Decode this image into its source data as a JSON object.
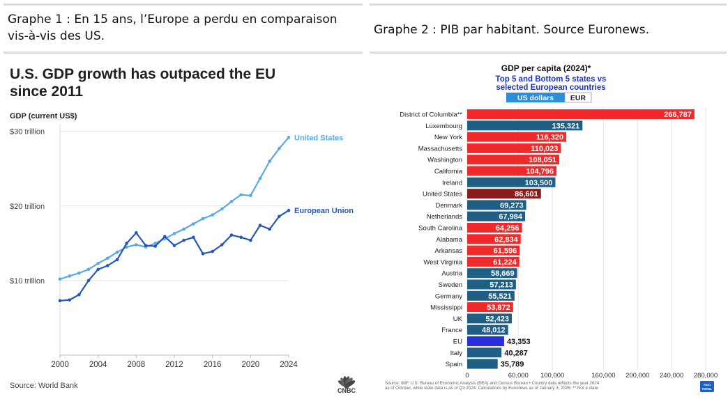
{
  "captions": {
    "graph1": "Graphe 1 : En 15 ans, l’Europe a perdu en comparaison vis-à-vis des US.",
    "graph2": "Graphe 2 : PIB par habitant. Source Euronews."
  },
  "colors": {
    "us_line": "#5aa9e6",
    "eu_line": "#2457b8",
    "state_bar": "#f02a2a",
    "country_bar": "#1f5f86",
    "us_bar": "#8b1c1c",
    "eu_bar": "#2b2de0",
    "title_blue": "#1a33c8"
  },
  "chart_data": [
    {
      "type": "line",
      "title": "U.S. GDP growth has outpaced the EU since 2011",
      "ylabel": "GDP (current US$)",
      "ytick_labels": [
        "$30 trillion",
        "$20 trillion",
        "$10 trillion"
      ],
      "ytick_values": [
        30,
        20,
        10
      ],
      "xtick_labels": [
        "2000",
        "2004",
        "2008",
        "2012",
        "2016",
        "2020",
        "2024"
      ],
      "ylim": [
        0,
        31
      ],
      "xlim": [
        2000,
        2024
      ],
      "x": [
        2000,
        2001,
        2002,
        2003,
        2004,
        2005,
        2006,
        2007,
        2008,
        2009,
        2010,
        2011,
        2012,
        2013,
        2014,
        2015,
        2016,
        2017,
        2018,
        2019,
        2020,
        2021,
        2022,
        2023,
        2024
      ],
      "series": [
        {
          "name": "United States",
          "values": [
            10.2,
            10.6,
            11.0,
            11.5,
            12.3,
            13.0,
            13.8,
            14.5,
            14.8,
            14.5,
            15.0,
            15.6,
            16.3,
            16.9,
            17.6,
            18.3,
            18.8,
            19.6,
            20.6,
            21.5,
            21.4,
            23.7,
            26.0,
            27.7,
            29.2
          ]
        },
        {
          "name": "European Union",
          "values": [
            7.3,
            7.4,
            8.1,
            10.0,
            11.5,
            12.0,
            12.8,
            15.0,
            16.4,
            14.7,
            14.6,
            15.9,
            14.7,
            15.4,
            15.8,
            13.6,
            13.9,
            14.8,
            16.1,
            15.8,
            15.4,
            17.4,
            16.9,
            18.6,
            19.4
          ]
        }
      ],
      "source": "Source: World Bank",
      "logo_text": "CNBC"
    },
    {
      "type": "bar",
      "orientation": "horizontal",
      "title": "GDP per capita (2024)*",
      "subtitle": "Top 5 and Bottom 5 states vs selected European countries",
      "toggle": {
        "active": "US dollars",
        "inactive": "EUR"
      },
      "xlim": [
        0,
        280000
      ],
      "xtick_values": [
        0,
        60000,
        100000,
        160000,
        200000,
        240000,
        280000
      ],
      "xtick_labels": [
        "0",
        "60,000",
        "100,000",
        "160,000",
        "200,000",
        "240,000",
        "280,000"
      ],
      "categories": [
        "District of Columbia**",
        "Luxembourg",
        "New York",
        "Massachusetts",
        "Washington",
        "California",
        "Ireland",
        "United States",
        "Denmark",
        "Netherlands",
        "South Carolina",
        "Alabama",
        "Arkansas",
        "West Virginia",
        "Austria",
        "Sweden",
        "Germany",
        "Mississippi",
        "UK",
        "France",
        "EU",
        "Italy",
        "Spain"
      ],
      "values": [
        266787,
        135321,
        116320,
        110023,
        108051,
        104796,
        103500,
        86601,
        69273,
        67984,
        64256,
        62834,
        61596,
        61224,
        58669,
        57213,
        55521,
        53872,
        52423,
        48012,
        43353,
        40287,
        35789
      ],
      "value_labels": [
        "266,787",
        "135,321",
        "116,320",
        "110,023",
        "108,051",
        "104,796",
        "103,500",
        "86,601",
        "69,273",
        "67,984",
        "64,256",
        "62,834",
        "61,596",
        "61,224",
        "58,669",
        "57,213",
        "55,521",
        "53,872",
        "52,423",
        "48,012",
        "43,353",
        "40,287",
        "35,789"
      ],
      "kinds": [
        "state",
        "country",
        "state",
        "state",
        "state",
        "state",
        "country",
        "us",
        "country",
        "country",
        "state",
        "state",
        "state",
        "state",
        "country",
        "country",
        "country",
        "state",
        "country",
        "country",
        "eu",
        "country",
        "country"
      ],
      "footnote": "Source: IMF, U.S. Bureau of Economic Analysis (BEA) and Census Bureau • Country data reflects the year 2024 as of October, while state data is as of Q3 2024. Calculations by Euronews as of January 3, 2025. ** Not a state",
      "logo_text": "euro news."
    }
  ]
}
